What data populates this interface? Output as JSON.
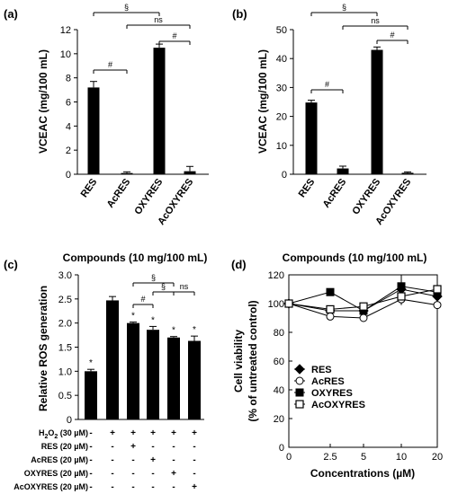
{
  "chart_data": [
    {
      "id": "a",
      "panel_label": "(a)",
      "type": "bar",
      "categories": [
        "RES",
        "AcRES",
        "OXYRES",
        "AcOXYRES"
      ],
      "values": [
        7.2,
        0.1,
        10.5,
        0.25
      ],
      "errors": [
        0.5,
        0.1,
        0.3,
        0.4
      ],
      "ylabel": "VCEAC (mg/100 mL)",
      "xlabel": "Compounds (10 mg/100 mL)",
      "ylim": [
        0,
        12
      ],
      "yticks": [
        "0",
        "2",
        "4",
        "6",
        "8",
        "10",
        "12"
      ],
      "brackets": [
        {
          "from": 0,
          "to": 1,
          "label": "#"
        },
        {
          "from": 0,
          "to": 2,
          "label": "§"
        },
        {
          "from": 1,
          "to": 3,
          "label": "ns"
        },
        {
          "from": 2,
          "to": 3,
          "label": "#"
        }
      ]
    },
    {
      "id": "b",
      "panel_label": "(b)",
      "type": "bar",
      "categories": [
        "RES",
        "AcRES",
        "OXYRES",
        "AcOXYRES"
      ],
      "values": [
        24.8,
        2.0,
        43.0,
        0.5
      ],
      "errors": [
        0.8,
        0.8,
        1.0,
        0.3
      ],
      "ylabel": "VCEAC (mg/100 mL)",
      "xlabel": "Compounds (10 mg/100 mL)",
      "ylim": [
        0,
        50
      ],
      "yticks": [
        "0",
        "10",
        "20",
        "30",
        "40",
        "50"
      ],
      "brackets": [
        {
          "from": 0,
          "to": 1,
          "label": "#"
        },
        {
          "from": 0,
          "to": 2,
          "label": "§"
        },
        {
          "from": 1,
          "to": 3,
          "label": "ns"
        },
        {
          "from": 2,
          "to": 3,
          "label": "#"
        }
      ]
    },
    {
      "id": "c",
      "panel_label": "(c)",
      "type": "bar",
      "values": [
        1.0,
        2.47,
        2.0,
        1.86,
        1.7,
        1.63
      ],
      "errors": [
        0.04,
        0.08,
        0.02,
        0.07,
        0.02,
        0.1
      ],
      "marks": [
        "*",
        "",
        "*",
        "*",
        "*",
        "*"
      ],
      "ylabel": "Relative ROS generation",
      "ylim": [
        0,
        3.0
      ],
      "yticks": [
        "0",
        "0.5",
        "1.0",
        "1.5",
        "2.0",
        "2.5",
        "3.0"
      ],
      "brackets": [
        {
          "from": 2,
          "to": 3,
          "label": "#"
        },
        {
          "from": 2,
          "to": 4,
          "label": "§"
        },
        {
          "from": 3,
          "to": 4,
          "label": "§"
        },
        {
          "from": 4,
          "to": 5,
          "label": "ns"
        }
      ],
      "treatment_rows": [
        {
          "label": "H2O2 (30 µM)",
          "signs": [
            "-",
            "+",
            "+",
            "+",
            "+",
            "+"
          ]
        },
        {
          "label": "RES (20 µM)",
          "signs": [
            "-",
            "-",
            "+",
            "-",
            "-",
            "-"
          ]
        },
        {
          "label": "AcRES (20 µM)",
          "signs": [
            "-",
            "-",
            "-",
            "+",
            "-",
            "-"
          ]
        },
        {
          "label": "OXYRES (20 µM)",
          "signs": [
            "-",
            "-",
            "-",
            "-",
            "+",
            "-"
          ]
        },
        {
          "label": "AcOXYRES (20 µM)",
          "signs": [
            "-",
            "-",
            "-",
            "-",
            "-",
            "+"
          ]
        }
      ]
    },
    {
      "id": "d",
      "panel_label": "(d)",
      "type": "line",
      "x": [
        0,
        2.5,
        5,
        10,
        20
      ],
      "xticks": [
        "0",
        "2.5",
        "5",
        "10",
        "20"
      ],
      "series": [
        {
          "name": "RES",
          "values": [
            100,
            95,
            95,
            110,
            105
          ],
          "marker": "diamond-filled"
        },
        {
          "name": "AcRES",
          "values": [
            100,
            91,
            90,
            103,
            99
          ],
          "marker": "circle-open"
        },
        {
          "name": "OXYRES",
          "values": [
            100,
            108,
            95,
            112,
            108
          ],
          "marker": "square-filled"
        },
        {
          "name": "AcOXYRES",
          "values": [
            100,
            96,
            98,
            105,
            110
          ],
          "marker": "square-open"
        }
      ],
      "ylabel_line1": "Cell viability",
      "ylabel_line2": "(% of untreated control)",
      "xlabel": "Concentrations (µM)",
      "ylim": [
        0,
        120
      ],
      "yticks": [
        "0",
        "20",
        "40",
        "60",
        "80",
        "100",
        "120"
      ],
      "legend_position": "bottom-left"
    }
  ]
}
